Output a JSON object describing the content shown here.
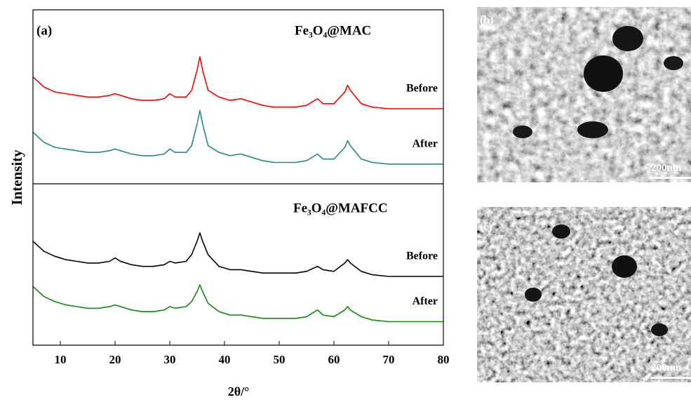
{
  "chart_data": {
    "type": "line",
    "annotations": [
      "(a)",
      "Fe₃O₄@MAC",
      "Fe₃O₄@MAFCC"
    ],
    "xlabel": "2θ/°",
    "ylabel": "Intensity",
    "xlim": [
      5,
      80
    ],
    "xticks": [
      10,
      20,
      30,
      40,
      50,
      60,
      70,
      80
    ],
    "ylim": [
      0,
      100
    ],
    "x": [
      5,
      7,
      9,
      11,
      13,
      15,
      17,
      19,
      20,
      21,
      23,
      25,
      27,
      29,
      30,
      31,
      33,
      34,
      35,
      35.5,
      36,
      37,
      39,
      41,
      43,
      45,
      47,
      49,
      51,
      53,
      55,
      57,
      58,
      60,
      62,
      62.5,
      63,
      65,
      67,
      70,
      73,
      76,
      80
    ],
    "series": [
      {
        "name": "Before",
        "color": "#ff0000",
        "values": [
          80,
          77,
          75.5,
          75,
          74.5,
          74,
          74,
          74.5,
          75,
          74.5,
          73.5,
          73,
          73,
          73.5,
          75,
          74,
          74,
          76,
          82,
          86,
          82,
          76,
          74,
          73,
          73.5,
          72.5,
          71.5,
          71,
          71,
          71,
          71.5,
          73.5,
          72,
          72,
          75.5,
          77.5,
          76,
          72,
          71,
          70.5,
          70.5,
          70.5,
          70.5
        ]
      },
      {
        "name": "After",
        "color": "#1f8a8a",
        "values": [
          63.5,
          60.5,
          59,
          58.5,
          58,
          57.5,
          57.5,
          58,
          58.5,
          58,
          57,
          56.5,
          56.5,
          57,
          58.5,
          57.5,
          57.5,
          59.5,
          66,
          70,
          66,
          59.5,
          57.5,
          56.5,
          57,
          56,
          55,
          54.5,
          54.5,
          54.5,
          55,
          57,
          55.5,
          55.5,
          59,
          61,
          59.5,
          55.5,
          54.5,
          54,
          54,
          54,
          54
        ]
      },
      {
        "name": "Before",
        "color": "#000000",
        "values": [
          31,
          28,
          26.5,
          25.5,
          25,
          24.5,
          24.5,
          25,
          26,
          25,
          24,
          23.5,
          23.5,
          24,
          25,
          24.5,
          25,
          27,
          31,
          33.5,
          31,
          27,
          23.5,
          22.5,
          22.5,
          22,
          21.5,
          21.5,
          21.5,
          21.5,
          22,
          23.5,
          22.5,
          22,
          24.5,
          25.5,
          24.5,
          22,
          21,
          20.5,
          20.5,
          20.5,
          20.5
        ]
      },
      {
        "name": "After",
        "color": "#0a8a0a",
        "values": [
          17.5,
          14.5,
          13,
          12,
          11.5,
          11,
          11,
          11.5,
          12,
          11.5,
          10.5,
          10,
          10,
          10.5,
          11.5,
          11,
          11.5,
          13,
          16,
          18,
          16,
          12.5,
          10,
          9,
          9,
          8.5,
          8,
          8,
          8,
          8,
          8.5,
          10.5,
          9,
          8.5,
          10.5,
          11.5,
          10.5,
          8.5,
          7.5,
          7,
          7,
          7,
          7
        ]
      }
    ]
  },
  "images": [
    {
      "label": "(b)",
      "scale": "200nm"
    },
    {
      "label": "(c)",
      "scale": "200nm"
    }
  ]
}
